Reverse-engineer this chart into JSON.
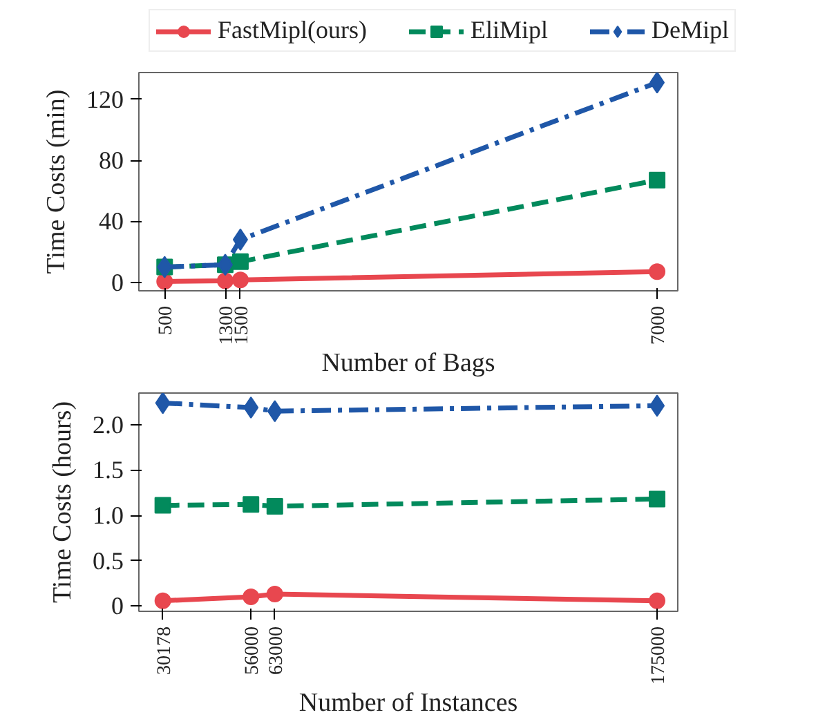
{
  "chart_data": [
    {
      "type": "line",
      "xlabel": "Number of Bags",
      "ylabel": "Time Costs (min)",
      "x": [
        500,
        1300,
        1500,
        7000
      ],
      "xlim": [
        160,
        7273
      ],
      "xticks": [
        500,
        1300,
        1500,
        7000
      ],
      "ylim": [
        -5.6,
        137.6
      ],
      "yticks": [
        0,
        40,
        80,
        120
      ],
      "grid": false,
      "legend": "top",
      "series": [
        {
          "name": "FastMipl(ours)",
          "color": "#e8474f",
          "marker": "circle",
          "line_style": "solid",
          "values": [
            0.5,
            1,
            1.5,
            7
          ]
        },
        {
          "name": "EliMipl",
          "color": "#028a5c",
          "marker": "square",
          "line_style": "dashed",
          "values": [
            10,
            11.5,
            13.5,
            67
          ]
        },
        {
          "name": "DeMipl",
          "color": "#1f57a8",
          "marker": "diamond",
          "line_style": "dashdot",
          "values": [
            10,
            11.5,
            28,
            131
          ]
        }
      ]
    },
    {
      "type": "line",
      "xlabel": "Number of Instances",
      "ylabel": "Time Costs (hours)",
      "x": [
        30178,
        56000,
        63000,
        175000
      ],
      "xlim": [
        23160,
        181070
      ],
      "xticks": [
        30178,
        56000,
        63000,
        175000
      ],
      "ylim": [
        -0.06,
        2.35
      ],
      "yticks": [
        0,
        0.5,
        {
          "value": 1.0,
          "label": "1.0"
        },
        1.5,
        {
          "value": 2.0,
          "label": "2.0"
        }
      ],
      "grid": false,
      "legend": false,
      "series": [
        {
          "color": "#e8474f",
          "marker": "circle",
          "line_style": "solid",
          "values": [
            0.056,
            0.1,
            0.13,
            0.056
          ]
        },
        {
          "color": "#028a5c",
          "marker": "square",
          "line_style": "dashed",
          "values": [
            1.11,
            1.12,
            1.1,
            1.18
          ]
        },
        {
          "color": "#1f57a8",
          "marker": "diamond",
          "line_style": "dashdot",
          "values": [
            2.24,
            2.19,
            2.15,
            2.21
          ]
        }
      ]
    }
  ]
}
